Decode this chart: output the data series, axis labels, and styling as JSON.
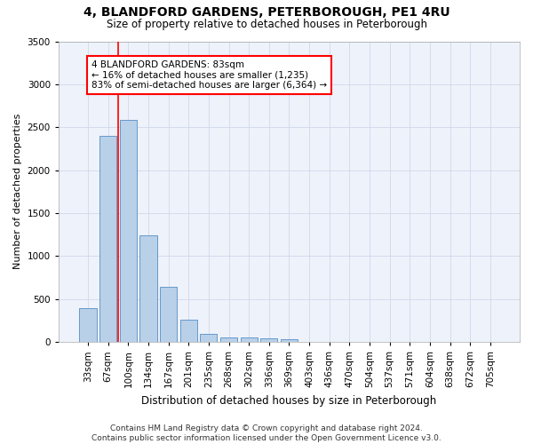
{
  "title": "4, BLANDFORD GARDENS, PETERBOROUGH, PE1 4RU",
  "subtitle": "Size of property relative to detached houses in Peterborough",
  "xlabel": "Distribution of detached houses by size in Peterborough",
  "ylabel": "Number of detached properties",
  "footer_line1": "Contains HM Land Registry data © Crown copyright and database right 2024.",
  "footer_line2": "Contains public sector information licensed under the Open Government Licence v3.0.",
  "categories": [
    "33sqm",
    "67sqm",
    "100sqm",
    "134sqm",
    "167sqm",
    "201sqm",
    "235sqm",
    "268sqm",
    "302sqm",
    "336sqm",
    "369sqm",
    "403sqm",
    "436sqm",
    "470sqm",
    "504sqm",
    "537sqm",
    "571sqm",
    "604sqm",
    "638sqm",
    "672sqm",
    "705sqm"
  ],
  "bar_values": [
    390,
    2400,
    2590,
    1240,
    640,
    255,
    90,
    55,
    55,
    40,
    30,
    0,
    0,
    0,
    0,
    0,
    0,
    0,
    0,
    0,
    0
  ],
  "bar_color": "#b8d0e8",
  "bar_edge_color": "#6699cc",
  "vline_pos": 1.5,
  "property_label": "4 BLANDFORD GARDENS: 83sqm",
  "pct_smaller": 16,
  "n_smaller": 1235,
  "pct_larger_semi": 83,
  "n_larger_semi": 6364,
  "ylim": [
    0,
    3500
  ],
  "yticks": [
    0,
    500,
    1000,
    1500,
    2000,
    2500,
    3000,
    3500
  ],
  "title_fontsize": 10,
  "subtitle_fontsize": 8.5,
  "xlabel_fontsize": 8.5,
  "ylabel_fontsize": 8,
  "tick_fontsize": 7.5,
  "annotation_fontsize": 7.5,
  "footer_fontsize": 6.5,
  "grid_color": "#d0d8ec",
  "bg_color": "#eef2fa"
}
